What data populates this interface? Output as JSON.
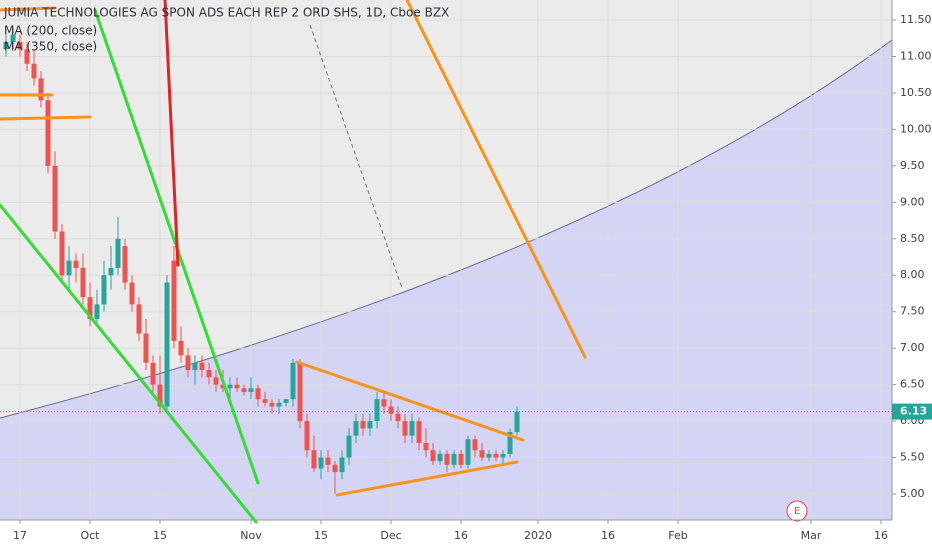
{
  "chart_data": {
    "type": "candlestick",
    "title": "JUMIA TECHNOLOGIES AG SPON ADS EACH REP 2 ORD SHS, 1D, Cboe BZX",
    "indicators": [
      "MA (200, close)",
      "MA (350, close)"
    ],
    "earnings_marker": "E",
    "up_color": "#26a69a",
    "down_color": "#ef5350",
    "last_price": 6.13,
    "last_price_label": "6.13",
    "xlim": [
      -2.857,
      124.571
    ],
    "ylim": [
      4.643,
      11.775
    ],
    "xticks": [
      {
        "value": 0,
        "label": "17"
      },
      {
        "value": 10,
        "label": "Oct"
      },
      {
        "value": 20,
        "label": "15"
      },
      {
        "value": 33,
        "label": "Nov"
      },
      {
        "value": 43,
        "label": "15"
      },
      {
        "value": 53,
        "label": "Dec"
      },
      {
        "value": 63,
        "label": "16"
      },
      {
        "value": 74,
        "label": "2020"
      },
      {
        "value": 84,
        "label": "16"
      },
      {
        "value": 94,
        "label": "Feb"
      },
      {
        "value": 113,
        "label": "Mar"
      },
      {
        "value": 123,
        "label": "16"
      }
    ],
    "yticks": [
      {
        "value": 5.0,
        "label": "5.00"
      },
      {
        "value": 5.5,
        "label": "5.50"
      },
      {
        "value": 6.0,
        "label": "6.00"
      },
      {
        "value": 6.5,
        "label": "6.50"
      },
      {
        "value": 7.0,
        "label": "7.00"
      },
      {
        "value": 7.5,
        "label": "7.50"
      },
      {
        "value": 8.0,
        "label": "8.00"
      },
      {
        "value": 8.5,
        "label": "8.50"
      },
      {
        "value": 9.0,
        "label": "9.00"
      },
      {
        "value": 9.5,
        "label": "9.50"
      },
      {
        "value": 10.0,
        "label": "10.00"
      },
      {
        "value": 10.5,
        "label": "10.50"
      },
      {
        "value": 11.0,
        "label": "11.00"
      },
      {
        "value": 11.5,
        "label": "11.50"
      }
    ],
    "series": {
      "x": [
        -2,
        -1,
        0,
        1,
        2,
        3,
        4,
        5,
        6,
        7,
        8,
        9,
        10,
        11,
        12,
        13,
        14,
        15,
        16,
        17,
        18,
        19,
        20,
        21,
        22,
        23,
        24,
        25,
        26,
        27,
        28,
        29,
        30,
        31,
        32,
        33,
        34,
        35,
        36,
        37,
        38,
        39,
        40,
        41,
        42,
        43,
        44,
        45,
        46,
        47,
        48,
        49,
        50,
        51,
        52,
        53,
        54,
        55,
        56,
        57,
        58,
        59,
        60,
        61,
        62,
        63,
        64,
        65,
        66,
        67,
        68,
        69,
        70,
        71
      ],
      "open": [
        11.1,
        11.2,
        11.2,
        11.1,
        10.9,
        10.7,
        10.4,
        9.5,
        8.6,
        8.0,
        8.2,
        8.1,
        7.7,
        7.4,
        7.6,
        8.0,
        8.1,
        8.4,
        7.9,
        7.6,
        7.2,
        6.8,
        6.5,
        6.2,
        8.2,
        7.1,
        6.9,
        6.7,
        6.8,
        6.7,
        6.6,
        6.5,
        6.45,
        6.5,
        6.45,
        6.4,
        6.45,
        6.3,
        6.25,
        6.2,
        6.25,
        6.3,
        6.8,
        6.0,
        5.6,
        5.35,
        5.5,
        5.4,
        5.3,
        5.5,
        5.8,
        6.0,
        5.9,
        6.0,
        6.3,
        6.2,
        6.1,
        6.0,
        5.8,
        6.0,
        5.7,
        5.6,
        5.45,
        5.55,
        5.4,
        5.55,
        5.4,
        5.75,
        5.6,
        5.5,
        5.55,
        5.5,
        5.55,
        5.85
      ],
      "high": [
        11.3,
        11.4,
        11.3,
        11.2,
        11.1,
        10.8,
        10.5,
        9.7,
        8.7,
        8.4,
        8.3,
        8.3,
        7.9,
        7.8,
        8.2,
        8.4,
        8.8,
        8.5,
        8.0,
        7.7,
        7.4,
        6.9,
        6.9,
        8.0,
        8.4,
        7.3,
        7.0,
        6.9,
        6.9,
        6.8,
        6.7,
        6.7,
        6.6,
        6.6,
        6.5,
        6.6,
        6.5,
        6.4,
        6.3,
        6.3,
        6.3,
        6.85,
        6.85,
        6.1,
        5.8,
        5.6,
        5.6,
        5.45,
        5.6,
        5.9,
        6.1,
        6.1,
        6.1,
        6.4,
        6.4,
        6.3,
        6.2,
        6.1,
        6.1,
        6.05,
        5.9,
        5.7,
        5.6,
        5.6,
        5.6,
        5.6,
        5.8,
        5.8,
        5.7,
        5.6,
        5.6,
        5.6,
        5.9,
        6.2
      ],
      "low": [
        11.0,
        11.1,
        11.0,
        10.8,
        10.6,
        10.3,
        9.4,
        8.5,
        7.9,
        7.8,
        7.9,
        7.6,
        7.3,
        7.3,
        7.5,
        7.8,
        8.0,
        7.8,
        7.5,
        7.1,
        6.7,
        6.4,
        6.1,
        6.1,
        7.0,
        6.8,
        6.6,
        6.5,
        6.6,
        6.5,
        6.4,
        6.4,
        6.3,
        6.4,
        6.35,
        6.3,
        6.2,
        6.2,
        6.1,
        6.1,
        6.2,
        6.2,
        5.9,
        5.5,
        5.3,
        5.2,
        5.3,
        5.0,
        5.2,
        5.4,
        5.7,
        5.8,
        5.8,
        5.9,
        6.1,
        6.0,
        5.9,
        5.7,
        5.7,
        5.6,
        5.5,
        5.4,
        5.4,
        5.3,
        5.35,
        5.35,
        5.35,
        5.5,
        5.45,
        5.45,
        5.45,
        5.4,
        5.5,
        5.8
      ],
      "close": [
        11.2,
        11.3,
        11.1,
        10.9,
        10.7,
        10.4,
        9.5,
        8.6,
        8.0,
        8.2,
        8.1,
        7.7,
        7.4,
        7.6,
        8.0,
        8.1,
        8.5,
        7.9,
        7.6,
        7.2,
        6.8,
        6.5,
        6.2,
        7.9,
        7.1,
        6.9,
        6.7,
        6.8,
        6.7,
        6.6,
        6.5,
        6.45,
        6.5,
        6.45,
        6.4,
        6.45,
        6.3,
        6.25,
        6.2,
        6.25,
        6.3,
        6.8,
        6.0,
        5.6,
        5.35,
        5.5,
        5.4,
        5.3,
        5.5,
        5.8,
        6.0,
        5.9,
        6.0,
        6.3,
        6.2,
        6.1,
        6.0,
        5.8,
        6.0,
        5.7,
        5.6,
        5.45,
        5.55,
        5.4,
        5.55,
        5.4,
        5.75,
        5.6,
        5.5,
        5.55,
        5.5,
        5.55,
        5.85,
        6.13
      ]
    }
  }
}
